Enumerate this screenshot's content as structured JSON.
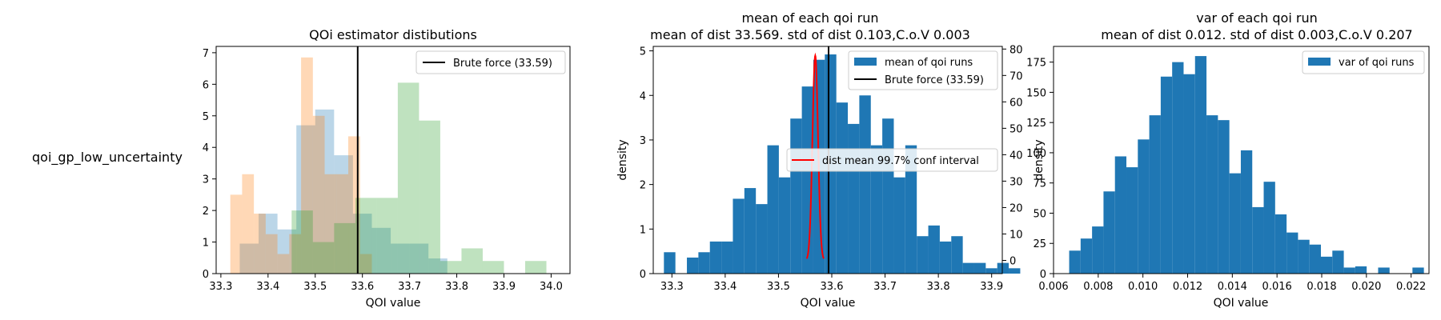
{
  "row_label": "qoi_gp_low_uncertainty",
  "chart_data": [
    {
      "type": "bar",
      "title": "QOi estimator distibutions",
      "xlabel": "QOI value",
      "ylabel": "",
      "xlim": [
        33.29,
        34.04
      ],
      "ylim": [
        0,
        7.2
      ],
      "xticks": [
        "33.3",
        "33.4",
        "33.5",
        "33.6",
        "33.7",
        "33.8",
        "33.9",
        "34.0"
      ],
      "yticks": [
        "0",
        "1",
        "2",
        "3",
        "4",
        "5",
        "6",
        "7"
      ],
      "legend": {
        "position": "upper right",
        "entries": [
          "Brute force (33.59)"
        ]
      },
      "vlines": [
        {
          "x": 33.59,
          "color": "#000000"
        }
      ],
      "series": [
        {
          "color": "#1f77b4",
          "alpha": 0.3,
          "bins": [
            [
              33.34,
              33.38,
              0.95
            ],
            [
              33.38,
              33.42,
              1.9
            ],
            [
              33.42,
              33.46,
              1.4
            ],
            [
              33.46,
              33.5,
              4.7
            ],
            [
              33.5,
              33.54,
              5.2
            ],
            [
              33.54,
              33.58,
              3.75
            ],
            [
              33.58,
              33.62,
              1.9
            ],
            [
              33.62,
              33.66,
              1.45
            ],
            [
              33.66,
              33.7,
              0.95
            ],
            [
              33.7,
              33.74,
              0.95
            ],
            [
              33.74,
              33.78,
              0.48
            ]
          ]
        },
        {
          "color": "#ff7f0e",
          "alpha": 0.3,
          "bins": [
            [
              33.32,
              33.345,
              2.5
            ],
            [
              33.345,
              33.37,
              3.15
            ],
            [
              33.37,
              33.395,
              1.9
            ],
            [
              33.395,
              33.42,
              1.25
            ],
            [
              33.42,
              33.445,
              0.62
            ],
            [
              33.445,
              33.47,
              1.25
            ],
            [
              33.47,
              33.495,
              6.85
            ],
            [
              33.495,
              33.52,
              5.0
            ],
            [
              33.52,
              33.545,
              3.15
            ],
            [
              33.545,
              33.57,
              3.15
            ],
            [
              33.57,
              33.595,
              4.35
            ],
            [
              33.595,
              33.62,
              0.62
            ]
          ]
        },
        {
          "color": "#2ca02c",
          "alpha": 0.3,
          "bins": [
            [
              33.45,
              33.495,
              2.0
            ],
            [
              33.495,
              33.54,
              1.0
            ],
            [
              33.54,
              33.585,
              1.6
            ],
            [
              33.585,
              33.63,
              2.4
            ],
            [
              33.63,
              33.675,
              2.4
            ],
            [
              33.675,
              33.72,
              6.05
            ],
            [
              33.72,
              33.765,
              4.85
            ],
            [
              33.765,
              33.81,
              0.4
            ],
            [
              33.81,
              33.855,
              0.8
            ],
            [
              33.855,
              33.9,
              0.4
            ],
            [
              33.9,
              33.945,
              0.0
            ],
            [
              33.945,
              33.99,
              0.4
            ]
          ]
        }
      ]
    },
    {
      "type": "bar",
      "title": "mean of each qoi run",
      "subtitle": "mean of dist 33.569. std of dist 0.103,C.o.V 0.003",
      "xlabel": "QOI value",
      "ylabel": "density",
      "xlim": [
        33.265,
        33.92
      ],
      "ylim": [
        0,
        5.1
      ],
      "y2lim": [
        -5,
        81
      ],
      "xticks": [
        "33.3",
        "33.4",
        "33.5",
        "33.6",
        "33.7",
        "33.8",
        "33.9"
      ],
      "yticks": [
        "0",
        "1",
        "2",
        "3",
        "4",
        "5"
      ],
      "y2ticks": [
        "0",
        "10",
        "20",
        "30",
        "40",
        "50",
        "60",
        "70",
        "80"
      ],
      "legend": {
        "position": "upper right",
        "entries": [
          "mean of qoi runs",
          "Brute force (33.59)"
        ]
      },
      "legend2": {
        "position": "center right",
        "entries": [
          "dist mean 99.7% conf interval"
        ]
      },
      "vlines": [
        {
          "x": 33.594,
          "color": "#000000"
        }
      ],
      "conf_curve": {
        "mean": 33.569,
        "sd": 0.0052,
        "peak": 77.5,
        "x_from": 33.553,
        "x_to": 33.585,
        "color": "#ff0000"
      },
      "series": [
        {
          "name": "mean of qoi runs",
          "color": "#1f77b4",
          "alpha": 1,
          "bin_start": 33.285,
          "bin_width": 0.02157,
          "values": [
            0.48,
            0.0,
            0.36,
            0.48,
            0.72,
            0.72,
            1.68,
            1.92,
            1.56,
            2.88,
            2.16,
            3.48,
            4.2,
            4.8,
            4.92,
            3.84,
            3.36,
            4.0,
            2.88,
            3.48,
            2.16,
            2.88,
            0.84,
            1.08,
            0.72,
            0.84,
            0.24,
            0.24,
            0.12,
            0.24,
            0.12
          ]
        }
      ]
    },
    {
      "type": "bar",
      "title": "var of each qoi run",
      "subtitle": "mean of dist 0.012. std of dist 0.003,C.o.V 0.207",
      "xlabel": "QOI value",
      "ylabel": "density",
      "xlim": [
        0.006,
        0.0228
      ],
      "ylim": [
        0,
        188
      ],
      "xticks": [
        "0.006",
        "0.008",
        "0.010",
        "0.012",
        "0.014",
        "0.016",
        "0.018",
        "0.020",
        "0.022"
      ],
      "yticks": [
        "0",
        "25",
        "50",
        "75",
        "100",
        "125",
        "150",
        "175"
      ],
      "legend": {
        "position": "upper right",
        "entries": [
          "var of qoi runs"
        ]
      },
      "series": [
        {
          "name": "var of qoi runs",
          "color": "#1f77b4",
          "alpha": 1,
          "bin_start": 0.0067,
          "bin_width": 0.000512,
          "values": [
            19,
            29,
            39,
            68,
            97,
            88,
            111,
            131,
            163,
            175,
            165,
            180,
            131,
            127,
            83,
            102,
            55,
            76,
            49,
            34,
            28,
            24,
            14,
            19,
            5,
            6,
            0,
            5,
            0,
            0,
            5
          ]
        }
      ]
    }
  ]
}
